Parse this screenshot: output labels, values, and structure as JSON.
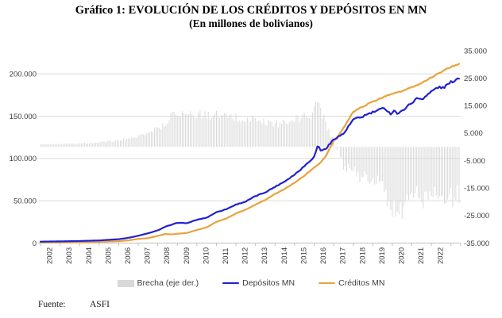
{
  "title": {
    "line1": "Gráfico 1: EVOLUCIÓN DE LOS CRÉDITOS Y DEPÓSITOS EN MN",
    "line2": "(En millones de bolivianos)"
  },
  "legend": {
    "items": [
      {
        "label": "Brecha (eje der.)",
        "swatch": "bar",
        "color": "#D9D9D9"
      },
      {
        "label": "Depósitos MN",
        "swatch": "line",
        "color": "#2121D1"
      },
      {
        "label": "Créditos MN",
        "swatch": "line",
        "color": "#E8A33C"
      }
    ]
  },
  "footer": {
    "label": "Fuente:",
    "source": "ASFI"
  },
  "colors": {
    "deposits": "#2121D1",
    "credits": "#E8A33C",
    "bars": "#D9D9D9",
    "grid": "#DCDCDC",
    "axis_line": "#BFBFBF",
    "axis_text": "#404040"
  },
  "axes": {
    "left_ticks": [
      {
        "label": "0",
        "value": 0
      },
      {
        "label": "50.000",
        "value": 50000
      },
      {
        "label": "100.000",
        "value": 100000
      },
      {
        "label": "150.000",
        "value": 150000
      },
      {
        "label": "200.000",
        "value": 200000
      }
    ],
    "right_ticks": [
      {
        "label": "-35.000",
        "value": -35000
      },
      {
        "label": "-25.000",
        "value": -25000
      },
      {
        "label": "-15.000",
        "value": -15000
      },
      {
        "label": "-5.000",
        "value": -5000
      },
      {
        "label": "5.000",
        "value": 5000
      },
      {
        "label": "15.000",
        "value": 15000
      },
      {
        "label": "25.000",
        "value": 25000
      },
      {
        "label": "35.000",
        "value": 35000
      }
    ],
    "x_labels": [
      "2002",
      "2003",
      "2004",
      "2005",
      "2006",
      "2007",
      "2008",
      "2009",
      "2010",
      "2011",
      "2012",
      "2013",
      "2014",
      "2015",
      "2016",
      "2017",
      "2018",
      "2019",
      "2020",
      "2021",
      "2022"
    ]
  },
  "chart_data": {
    "type": "combo",
    "frequency": "monthly",
    "x_range": [
      2002.0,
      2023.417
    ],
    "left_axis": {
      "min": 0,
      "max": 227000,
      "label_max": 200000,
      "step": 50000
    },
    "right_axis": {
      "min": -35000,
      "max": 35000,
      "step": 10000
    },
    "grid": "horizontal-only",
    "legend_position": "bottom",
    "series": [
      {
        "name": "Depósitos MN",
        "type": "line",
        "axis": "left",
        "color": "#2121D1",
        "anchors": [
          [
            2002.0,
            1700
          ],
          [
            2003.0,
            2000
          ],
          [
            2004.0,
            2400
          ],
          [
            2005.0,
            3100
          ],
          [
            2006.0,
            4600
          ],
          [
            2006.5,
            6200
          ],
          [
            2007.0,
            8600
          ],
          [
            2007.5,
            11500
          ],
          [
            2008.0,
            15000
          ],
          [
            2008.4,
            19500
          ],
          [
            2008.7,
            21500
          ],
          [
            2009.0,
            24000
          ],
          [
            2009.5,
            23500
          ],
          [
            2010.0,
            27500
          ],
          [
            2010.5,
            30000
          ],
          [
            2011.0,
            36500
          ],
          [
            2011.5,
            40000
          ],
          [
            2012.0,
            45500
          ],
          [
            2012.5,
            49000
          ],
          [
            2013.0,
            55500
          ],
          [
            2013.5,
            60000
          ],
          [
            2014.0,
            66500
          ],
          [
            2014.5,
            73000
          ],
          [
            2015.0,
            81000
          ],
          [
            2015.5,
            91000
          ],
          [
            2016.0,
            102000
          ],
          [
            2016.2,
            116000
          ],
          [
            2016.35,
            109000
          ],
          [
            2016.6,
            111500
          ],
          [
            2017.0,
            122500
          ],
          [
            2017.2,
            125500
          ],
          [
            2017.5,
            129000
          ],
          [
            2018.0,
            146000
          ],
          [
            2018.4,
            148500
          ],
          [
            2018.6,
            151000
          ],
          [
            2019.0,
            154500
          ],
          [
            2019.3,
            157000
          ],
          [
            2019.6,
            160000
          ],
          [
            2019.9,
            152500
          ],
          [
            2020.1,
            157000
          ],
          [
            2020.3,
            152000
          ],
          [
            2020.6,
            158500
          ],
          [
            2021.0,
            166000
          ],
          [
            2021.3,
            171500
          ],
          [
            2021.5,
            170000
          ],
          [
            2022.0,
            179000
          ],
          [
            2022.3,
            184000
          ],
          [
            2022.6,
            183500
          ],
          [
            2023.0,
            190000
          ],
          [
            2023.417,
            195500
          ]
        ]
      },
      {
        "name": "Créditos MN",
        "type": "line",
        "axis": "left",
        "color": "#E8A33C",
        "anchors": [
          [
            2002.0,
            700
          ],
          [
            2003.0,
            900
          ],
          [
            2004.0,
            1100
          ],
          [
            2005.0,
            1500
          ],
          [
            2006.0,
            2200
          ],
          [
            2006.5,
            3200
          ],
          [
            2007.0,
            4900
          ],
          [
            2007.5,
            5800
          ],
          [
            2008.0,
            8500
          ],
          [
            2008.4,
            10800
          ],
          [
            2008.7,
            10200
          ],
          [
            2009.0,
            11000
          ],
          [
            2009.5,
            12000
          ],
          [
            2010.0,
            15500
          ],
          [
            2010.5,
            18500
          ],
          [
            2011.0,
            25000
          ],
          [
            2011.5,
            29000
          ],
          [
            2012.0,
            35000
          ],
          [
            2012.5,
            39500
          ],
          [
            2013.0,
            45500
          ],
          [
            2013.5,
            51000
          ],
          [
            2014.0,
            58000
          ],
          [
            2014.5,
            64000
          ],
          [
            2015.0,
            71500
          ],
          [
            2015.5,
            79500
          ],
          [
            2016.0,
            89500
          ],
          [
            2016.3,
            94000
          ],
          [
            2016.6,
            103000
          ],
          [
            2017.0,
            121000
          ],
          [
            2017.2,
            125500
          ],
          [
            2017.5,
            136000
          ],
          [
            2018.0,
            155000
          ],
          [
            2018.5,
            161500
          ],
          [
            2019.0,
            167000
          ],
          [
            2019.5,
            172000
          ],
          [
            2019.75,
            174500
          ],
          [
            2020.0,
            177000
          ],
          [
            2020.5,
            179500
          ],
          [
            2021.0,
            184000
          ],
          [
            2021.5,
            189000
          ],
          [
            2022.0,
            196000
          ],
          [
            2022.5,
            202000
          ],
          [
            2023.0,
            208000
          ],
          [
            2023.417,
            212000
          ]
        ]
      },
      {
        "name": "Brecha (eje der.)",
        "type": "bar",
        "axis": "right",
        "color": "#D9D9D9",
        "derived": "depositos_minus_creditos",
        "clamp": [
          -29500,
          16200
        ]
      }
    ]
  }
}
